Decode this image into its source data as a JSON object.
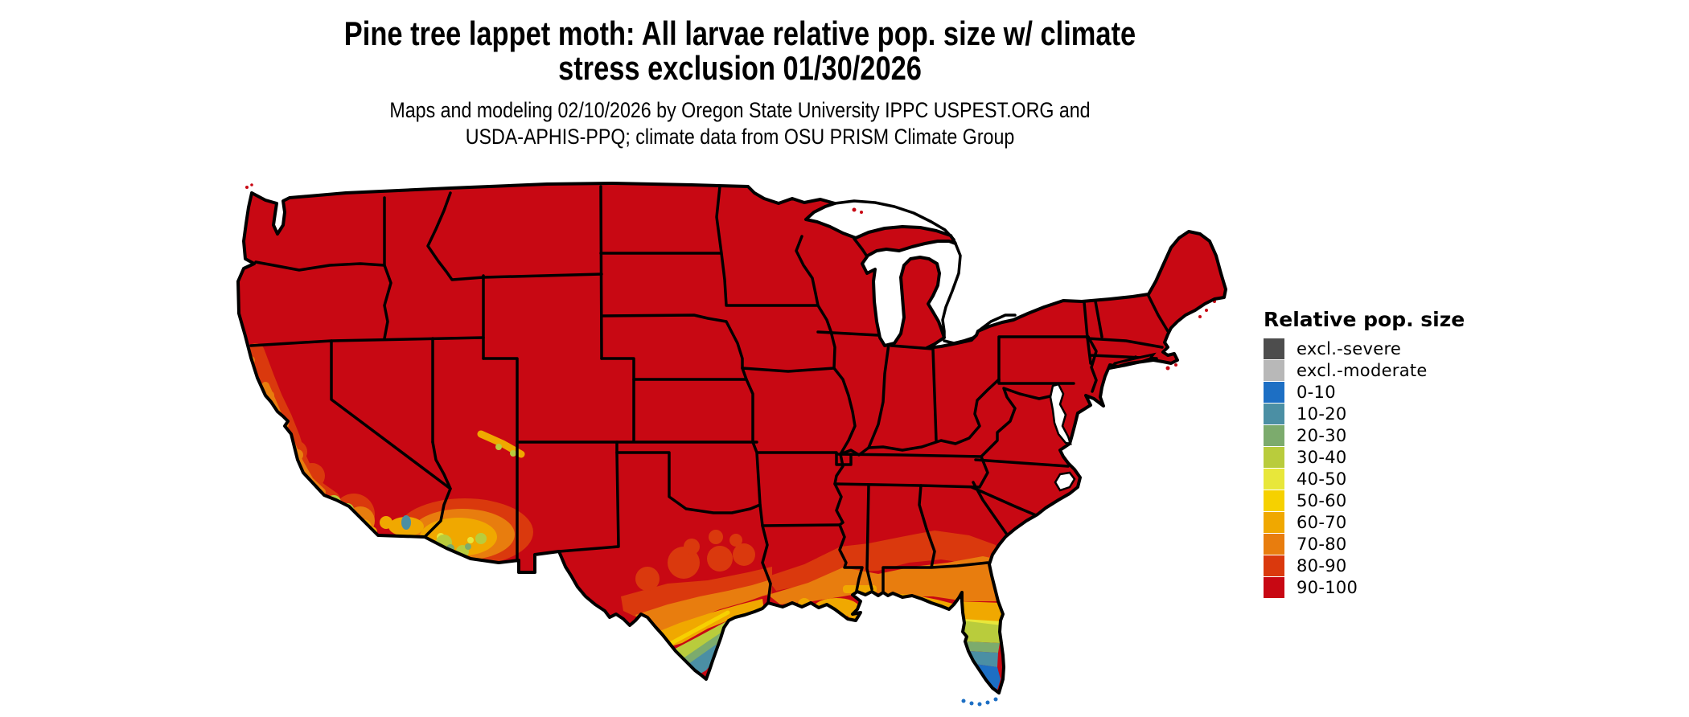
{
  "title": {
    "line1": "Pine tree lappet moth: All larvae relative pop. size w/ climate",
    "line2": "stress exclusion 01/30/2026"
  },
  "subtitle": {
    "line1": "Maps and modeling 02/10/2026 by Oregon State University IPPC USPEST.ORG and",
    "line2": "USDA-APHIS-PPQ; climate data from OSU PRISM Climate Group"
  },
  "legend": {
    "title": "Relative pop. size",
    "entries": [
      {
        "key": "excl-severe",
        "label": "excl.-severe",
        "color": "#4d4d4d"
      },
      {
        "key": "excl-moderate",
        "label": "excl.-moderate",
        "color": "#b8b8b8"
      },
      {
        "key": "0-10",
        "label": "0-10",
        "color": "#1d6fc4"
      },
      {
        "key": "10-20",
        "label": "10-20",
        "color": "#4b8fa4"
      },
      {
        "key": "20-30",
        "label": "20-30",
        "color": "#7cab6d"
      },
      {
        "key": "30-40",
        "label": "30-40",
        "color": "#b9cc3c"
      },
      {
        "key": "40-50",
        "label": "40-50",
        "color": "#e8e73a"
      },
      {
        "key": "50-60",
        "label": "50-60",
        "color": "#f6d100"
      },
      {
        "key": "60-70",
        "label": "60-70",
        "color": "#f0a800"
      },
      {
        "key": "70-80",
        "label": "70-80",
        "color": "#e87d0e"
      },
      {
        "key": "80-90",
        "label": "80-90",
        "color": "#da390d"
      },
      {
        "key": "90-100",
        "label": "90-100",
        "color": "#c80813"
      }
    ]
  },
  "map": {
    "background": "#ffffff",
    "water_color": "#ffffff",
    "border_color": "#000000",
    "land_base_color_key": "90-100"
  },
  "chart_data": {
    "type": "choropleth_map",
    "title": "Pine tree lappet moth: All larvae relative pop. size w/ climate stress exclusion 01/30/2026",
    "legend_title": "Relative pop. size",
    "classes": [
      "excl.-severe",
      "excl.-moderate",
      "0-10",
      "10-20",
      "20-30",
      "30-40",
      "40-50",
      "50-60",
      "60-70",
      "70-80",
      "80-90",
      "90-100"
    ],
    "colors": [
      "#4d4d4d",
      "#b8b8b8",
      "#1d6fc4",
      "#4b8fa4",
      "#7cab6d",
      "#b9cc3c",
      "#e8e73a",
      "#f6d100",
      "#f0a800",
      "#e87d0e",
      "#da390d",
      "#c80813"
    ],
    "regions_summary": [
      "Most of the contiguous US is in the 90-100 class (solid red)",
      "Coastal and southern California grade through 80-90, 70-80, 60-70 with 30-40 and 20-30 patches near Los Angeles/San Diego and the Channel Islands",
      "Southwestern Arizona / southeastern California desert shows 60-70 and 70-80 with 30-40 patches",
      "South Texas grades 80-90, 70-80, 60-70, 30-40 down to 10-20 at the southern tip",
      "Gulf Coast strip (Louisiana, Mississippi, Alabama, south Georgia, Florida panhandle) shows 80-90 and 70-80 with 60-70 near the coast",
      "Florida peninsula grades 70-80, 60-70, 30-40, 20-30, 10-20, 0-10 at the southern tip and Keys"
    ]
  }
}
